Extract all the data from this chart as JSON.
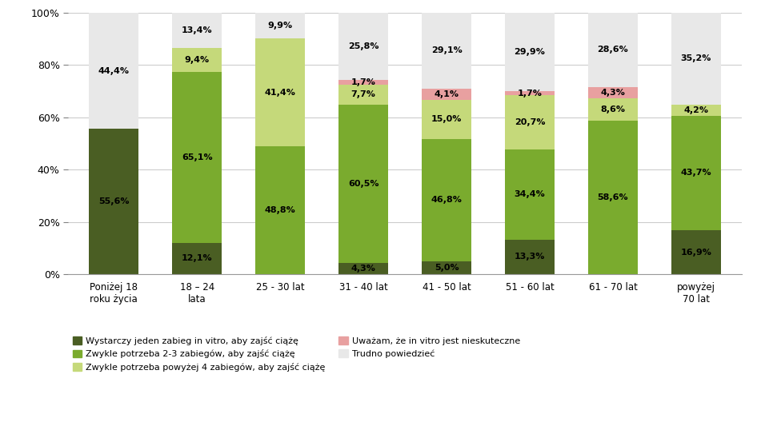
{
  "categories": [
    "Poniżej 18\nroku życia",
    "18 – 24\nlata",
    "25 - 30 lat",
    "31 - 40 lat",
    "41 - 50 lat",
    "51 - 60 lat",
    "61 - 70 lat",
    "powyżej\n70 lat"
  ],
  "series": {
    "s1": [
      55.6,
      12.1,
      0.0,
      4.3,
      5.0,
      13.3,
      0.0,
      16.9
    ],
    "s2": [
      0.0,
      65.1,
      48.8,
      60.5,
      46.8,
      34.4,
      58.6,
      43.7
    ],
    "s3": [
      0.0,
      9.4,
      41.4,
      7.7,
      15.0,
      20.7,
      8.6,
      4.2
    ],
    "s4": [
      0.0,
      0.0,
      0.0,
      1.7,
      4.1,
      1.7,
      4.3,
      0.0
    ],
    "s5": [
      44.4,
      13.4,
      9.9,
      25.8,
      29.1,
      29.9,
      28.6,
      35.2
    ]
  },
  "colors": {
    "s1": "#4a5e23",
    "s2": "#7aab2e",
    "s3": "#c5d97a",
    "s4": "#e8a0a0",
    "s5": "#e8e8e8"
  },
  "labels": {
    "s1": [
      55.6,
      12.1,
      null,
      4.3,
      5.0,
      13.3,
      null,
      16.9
    ],
    "s2": [
      null,
      65.1,
      48.8,
      60.5,
      46.8,
      34.4,
      58.6,
      43.7
    ],
    "s3": [
      null,
      9.4,
      41.4,
      7.7,
      15.0,
      20.7,
      8.6,
      4.2
    ],
    "s4": [
      null,
      null,
      null,
      1.7,
      4.1,
      1.7,
      4.3,
      null
    ],
    "s5": [
      44.4,
      13.4,
      9.9,
      25.8,
      29.1,
      29.9,
      28.6,
      35.2
    ]
  },
  "legend_labels": [
    "Wystarczy jeden zabieg in vitro, aby zajść ciążę",
    "Zwykle potrzeba 2-3 zabiegów, aby zajść ciążę",
    "Zwykle potrzeba powyżej 4 zabiegów, aby zajść ciążę",
    "Uważam, że in vitro jest nieskuteczne",
    "Trudno powiedzieć"
  ],
  "legend_order": [
    0,
    1,
    2,
    3,
    4
  ],
  "ylim": [
    0,
    100
  ],
  "yticks": [
    0,
    20,
    40,
    60,
    80,
    100
  ],
  "background_color": "#ffffff",
  "bar_width": 0.6,
  "figsize": [
    9.46,
    5.28
  ],
  "dpi": 100
}
